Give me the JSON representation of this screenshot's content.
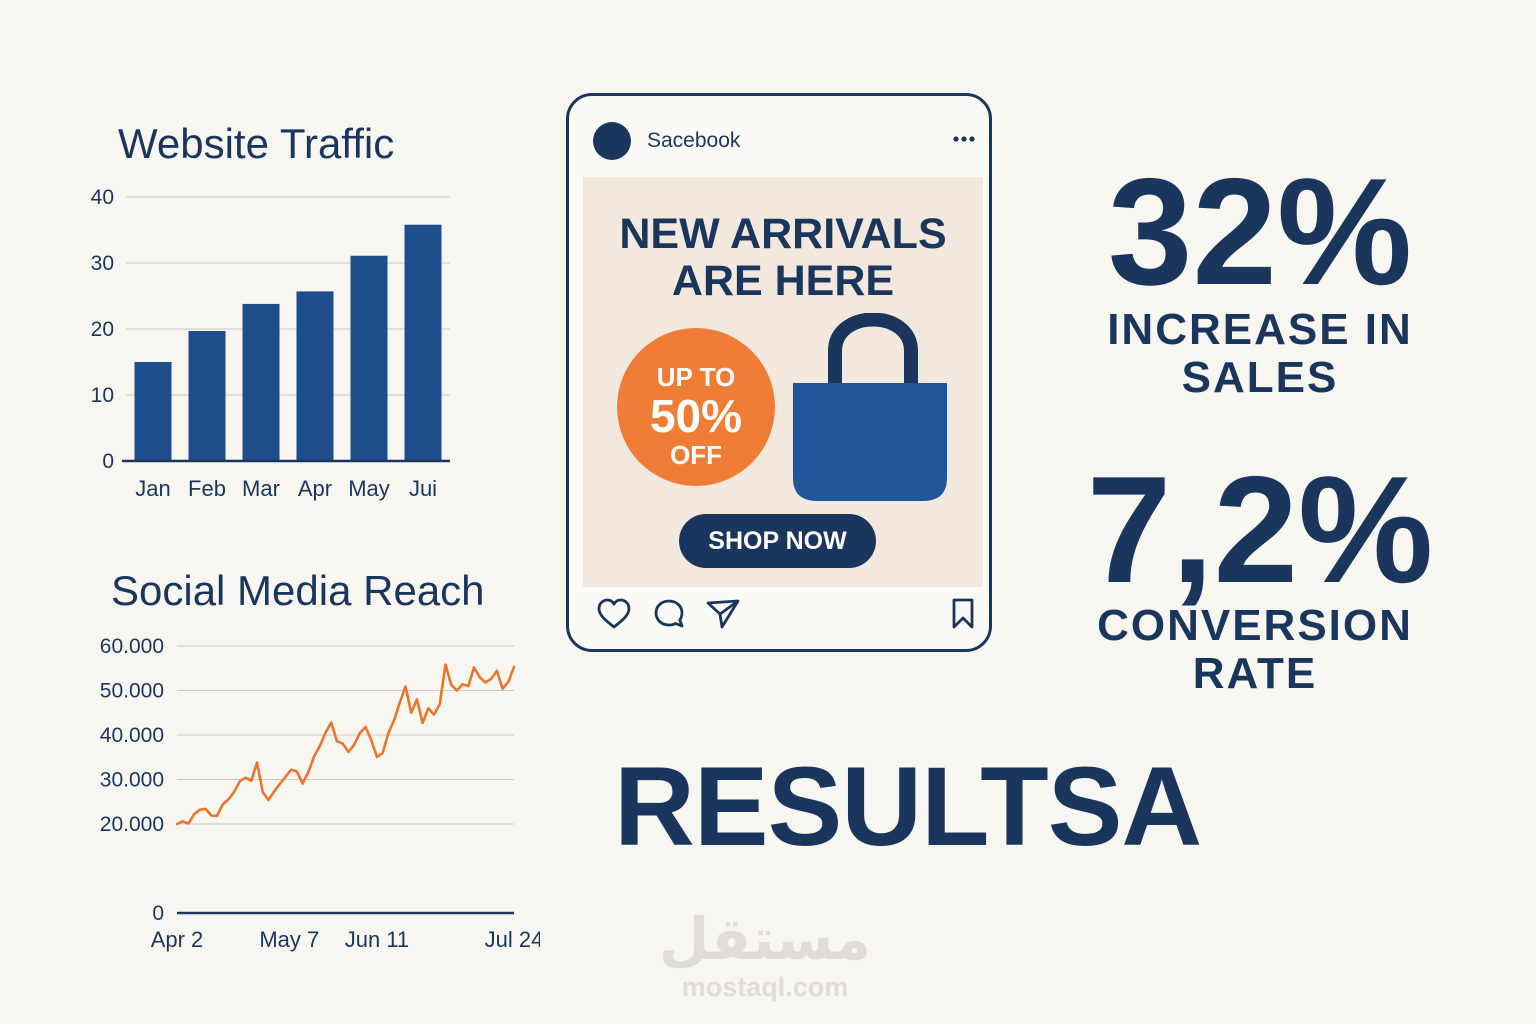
{
  "chart_data": [
    {
      "type": "bar",
      "title": "Website Traffic",
      "categories": [
        "Jan",
        "Feb",
        "Mar",
        "Apr",
        "May",
        "Jui"
      ],
      "values": [
        15,
        19.7,
        23.8,
        25.7,
        31.1,
        35.8
      ],
      "y_ticks": [
        "0",
        "10",
        "20",
        "30",
        "40"
      ],
      "ylim": [
        0,
        40
      ],
      "grid": true,
      "color": "#1f4e8c"
    },
    {
      "type": "line",
      "title": "Social Media Reach",
      "x_ticks": [
        "Apr 2",
        "May 7",
        "Jun 11",
        "Jul 24"
      ],
      "y_ticks": [
        "0",
        "20.000",
        "30.000",
        "40.000",
        "50.000",
        "60.000"
      ],
      "grid": true,
      "color": "#e8762d",
      "series": [
        {
          "x": [
            "Apr 2",
            "Apr 4",
            "Apr 6",
            "Apr 8",
            "Apr 10",
            "Apr 12",
            "Apr 14",
            "Apr 16",
            "Apr 18",
            "Apr 20",
            "Apr 22",
            "Apr 24",
            "Apr 26",
            "Apr 28",
            "Apr 30",
            "May 2",
            "May 4",
            "May 6",
            "May 8",
            "May 10",
            "May 12",
            "May 14",
            "May 16",
            "May 18",
            "May 20",
            "May 22",
            "May 24",
            "May 26",
            "May 28",
            "May 30",
            "Jun 1",
            "Jun 3",
            "Jun 5",
            "Jun 7",
            "Jun 9",
            "Jun 11",
            "Jun 13",
            "Jun 15",
            "Jun 17",
            "Jun 19",
            "Jun 21",
            "Jun 23",
            "Jun 25",
            "Jun 27",
            "Jun 29",
            "Jul 1",
            "Jul 3",
            "Jul 5",
            "Jul 7",
            "Jul 9",
            "Jul 11",
            "Jul 13",
            "Jul 15",
            "Jul 17",
            "Jul 19",
            "Jul 21",
            "Jul 23",
            "Jul 25",
            "Jul 27",
            "Jul 29"
          ],
          "values": [
            20000,
            20600,
            20100,
            22200,
            23200,
            23400,
            21900,
            21800,
            24400,
            25500,
            27200,
            29600,
            30400,
            29700,
            33800,
            27200,
            25400,
            27300,
            29000,
            30600,
            32200,
            31800,
            29100,
            31700,
            35200,
            37500,
            40500,
            42800,
            38600,
            38100,
            36200,
            37800,
            40400,
            41800,
            38900,
            35100,
            35900,
            40400,
            43300,
            47300,
            50900,
            45000,
            48000,
            42700,
            46000,
            44600,
            46900,
            55800,
            51300,
            50000,
            51400,
            51000,
            55200,
            53000,
            51800,
            52600,
            54400,
            50400,
            51900,
            55300
          ]
        }
      ]
    }
  ],
  "post": {
    "account_name": "Sacebook",
    "headline_line1": "NEW ARRIVALS",
    "headline_line2": "ARE HERE",
    "discount_line1": "UP TO",
    "discount_line2": "50%",
    "discount_line3": "OFF",
    "cta_label": "SHOP NOW",
    "icons": [
      "profile-avatar",
      "more-options-icon",
      "tote-bag-icon",
      "heart-icon",
      "comment-icon",
      "share-icon",
      "bookmark-icon"
    ]
  },
  "kpis": [
    {
      "value": "32%",
      "label_line1": "INCREASE IN",
      "label_line2": "SALES"
    },
    {
      "value": "7,2%",
      "label_line1": "CONVERSION",
      "label_line2": "RATE"
    }
  ],
  "results_title": "RESULTSA",
  "watermark": {
    "arabic": "مستقل",
    "latin": "mostaql.com"
  },
  "colors": {
    "navy": "#1b365d",
    "bar_blue": "#1f4e8c",
    "orange": "#ef7d36",
    "background": "#f8f6f1",
    "ad_background": "#f2e8de"
  }
}
